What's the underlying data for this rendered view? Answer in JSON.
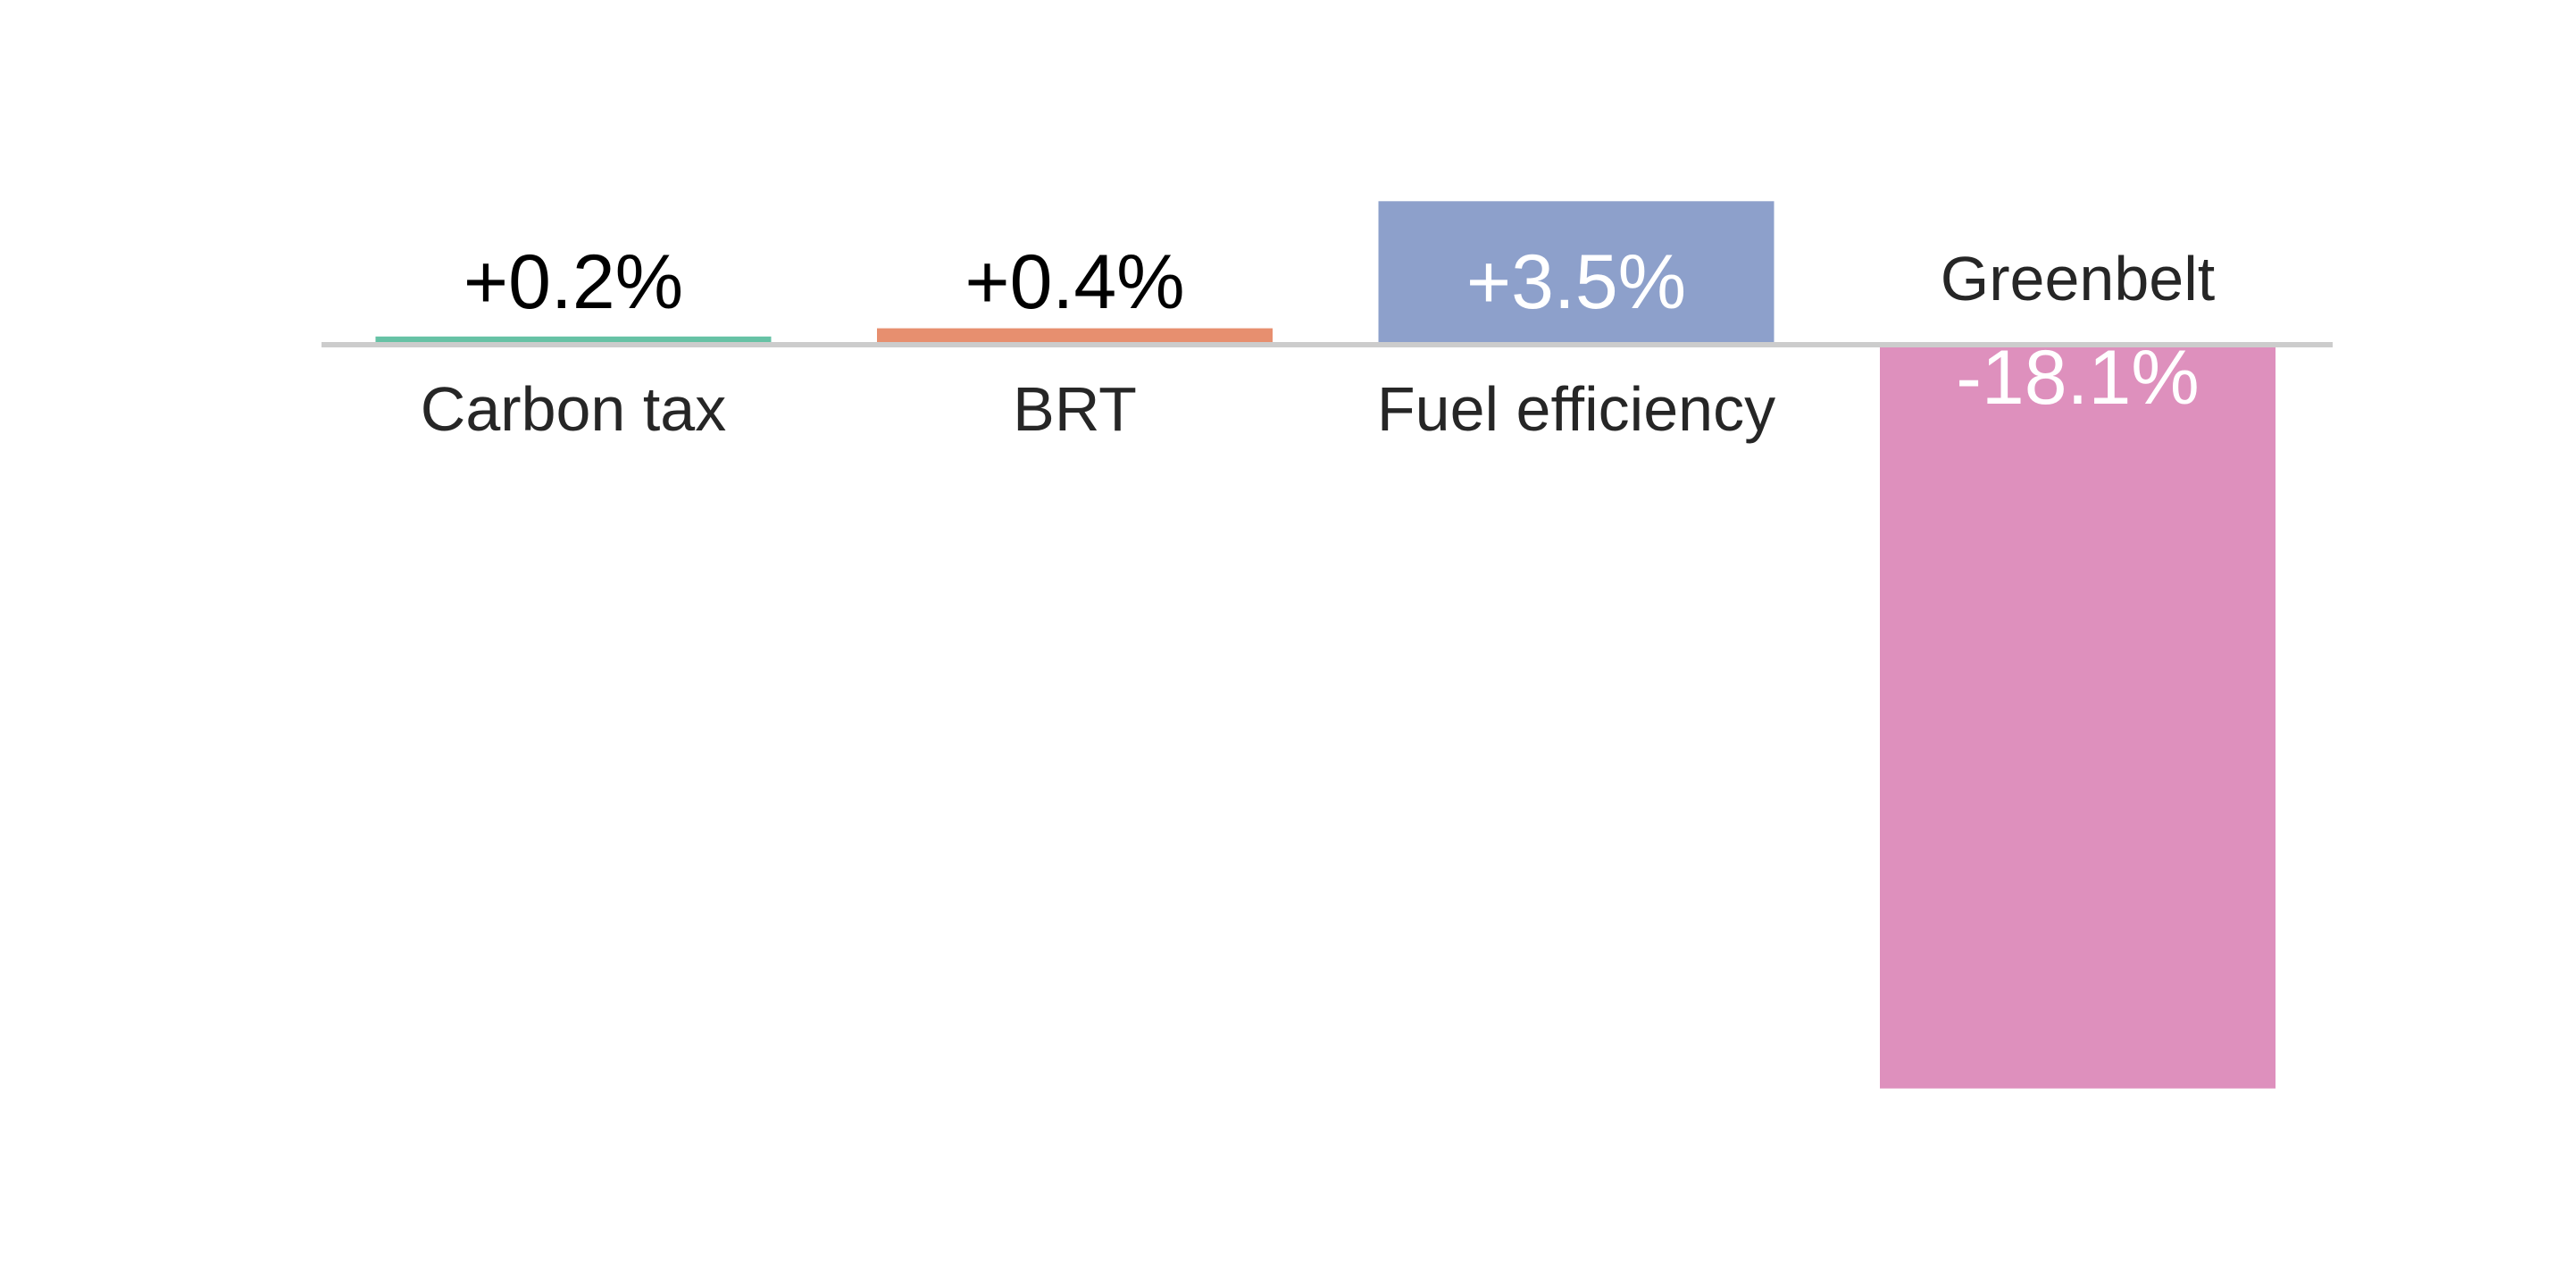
{
  "chart_data": {
    "type": "bar",
    "categories": [
      "Carbon tax",
      "BRT",
      "Fuel efficiency",
      "Greenbelt"
    ],
    "values": [
      0.2,
      0.4,
      3.5,
      -18.1
    ],
    "value_labels": [
      "+0.2%",
      "+0.4%",
      "+3.5%",
      "-18.1%"
    ],
    "unit": "%",
    "colors": [
      "#66c2a5",
      "#e78f6f",
      "#8da0cb",
      "#de90bd"
    ],
    "baseline_color": "#cccccc",
    "ylim": [
      -18.1,
      3.5
    ],
    "grid": false,
    "legend": "none",
    "title": "",
    "xlabel": "",
    "ylabel": ""
  }
}
